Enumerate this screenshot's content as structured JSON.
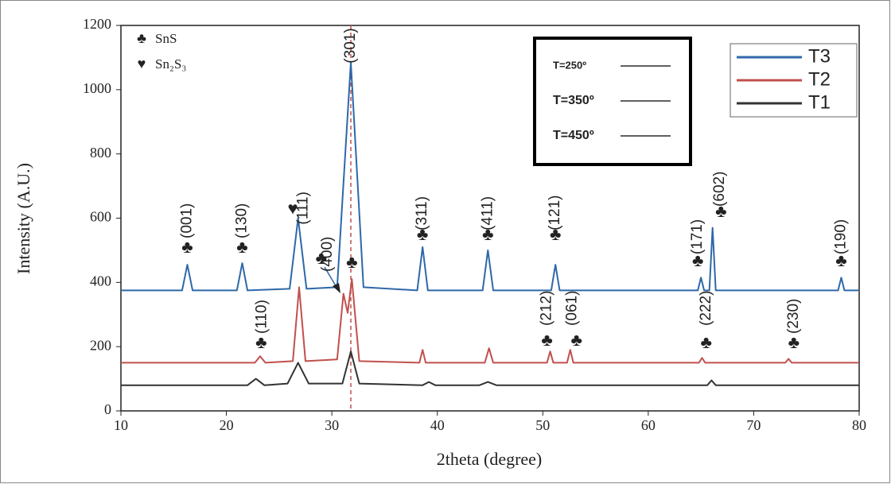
{
  "chart_data": {
    "type": "line",
    "x_label": "2theta (degree)",
    "y_label": "Intensity (A.U.)",
    "xlim": [
      10,
      80
    ],
    "ylim": [
      0,
      1200
    ],
    "xticks": [
      10,
      20,
      30,
      40,
      50,
      60,
      70,
      80
    ],
    "yticks": [
      0,
      200,
      400,
      600,
      800,
      1000,
      1200
    ],
    "grid": false,
    "legend_position": "upper right",
    "series": [
      {
        "name": "T3",
        "color": "#2e68a8",
        "x": [
          10,
          15.8,
          16.3,
          16.8,
          21.0,
          21.5,
          22.0,
          26.0,
          26.8,
          27.6,
          30.5,
          31.8,
          33.0,
          38.1,
          38.6,
          39.1,
          44.3,
          44.8,
          45.3,
          50.8,
          51.2,
          51.6,
          64.7,
          65.0,
          65.3,
          65.8,
          66.1,
          66.4,
          78.0,
          78.3,
          78.6,
          80
        ],
        "values": [
          375,
          375,
          455,
          375,
          375,
          460,
          375,
          380,
          600,
          380,
          385,
          1085,
          385,
          375,
          510,
          375,
          375,
          500,
          375,
          375,
          455,
          375,
          375,
          415,
          375,
          375,
          570,
          375,
          375,
          415,
          375,
          375
        ]
      },
      {
        "name": "T2",
        "color": "#c0504d",
        "x": [
          10,
          22.7,
          23.2,
          23.7,
          26.3,
          26.9,
          27.5,
          30.5,
          31.1,
          31.5,
          31.9,
          32.6,
          38.3,
          38.6,
          38.9,
          44.5,
          44.9,
          45.3,
          50.4,
          50.7,
          51.0,
          52.3,
          52.6,
          52.9,
          64.8,
          65.1,
          65.4,
          73.0,
          73.3,
          73.6,
          80
        ],
        "values": [
          150,
          150,
          170,
          150,
          155,
          385,
          155,
          160,
          365,
          305,
          410,
          155,
          150,
          190,
          150,
          150,
          195,
          150,
          150,
          185,
          150,
          150,
          190,
          150,
          150,
          165,
          150,
          150,
          162,
          150,
          150
        ]
      },
      {
        "name": "T1",
        "color": "#333333",
        "x": [
          10,
          22.0,
          22.8,
          23.6,
          25.8,
          26.8,
          27.8,
          31.0,
          31.8,
          32.6,
          38.6,
          39.2,
          39.8,
          44.0,
          44.8,
          45.6,
          65.6,
          66.0,
          66.4,
          80
        ],
        "values": [
          80,
          80,
          100,
          80,
          85,
          150,
          85,
          85,
          185,
          85,
          80,
          90,
          80,
          80,
          90,
          80,
          80,
          95,
          80,
          80
        ]
      }
    ],
    "reference_line": {
      "x": 31.8,
      "color": "#c0504d"
    },
    "phase_legend": [
      {
        "symbol": "♣",
        "label": "SnS"
      },
      {
        "symbol": "♥",
        "label": "Sn₂S₃"
      }
    ],
    "temperature_legend": [
      {
        "label": "T=250º",
        "color": "#222222"
      },
      {
        "label": "T=350º",
        "color": "#ff0000"
      },
      {
        "label": "T=450º",
        "color": "#4f81bd"
      }
    ],
    "peak_labels": [
      {
        "text": "(001)",
        "x": 16.3,
        "y": 537
      },
      {
        "text": "(130)",
        "x": 21.5,
        "y": 537
      },
      {
        "text": "(111)",
        "x": 27.3,
        "y": 580
      },
      {
        "text": "(400)",
        "x": 29.6,
        "y": 433
      },
      {
        "text": "(301)",
        "x": 31.8,
        "y": 1082
      },
      {
        "text": "(311)",
        "x": 38.6,
        "y": 562
      },
      {
        "text": "(411)",
        "x": 44.8,
        "y": 562
      },
      {
        "text": "(121)",
        "x": 51.2,
        "y": 562
      },
      {
        "text": "(171)",
        "x": 64.7,
        "y": 487
      },
      {
        "text": "(602)",
        "x": 66.8,
        "y": 636
      },
      {
        "text": "(190)",
        "x": 78.3,
        "y": 487
      },
      {
        "text": "(110)",
        "x": 23.4,
        "y": 240
      },
      {
        "text": "(212)",
        "x": 50.4,
        "y": 265
      },
      {
        "text": "(061)",
        "x": 52.8,
        "y": 265
      },
      {
        "text": "(222)",
        "x": 65.5,
        "y": 265
      },
      {
        "text": "(230)",
        "x": 73.8,
        "y": 240
      }
    ],
    "peak_symbols": [
      {
        "symbol": "♣",
        "x": 16.3,
        "y": 505
      },
      {
        "symbol": "♣",
        "x": 21.5,
        "y": 505
      },
      {
        "symbol": "♥",
        "x": 26.3,
        "y": 625
      },
      {
        "symbol": "♣",
        "x": 29.0,
        "y": 470
      },
      {
        "symbol": "♣",
        "x": 31.9,
        "y": 458
      },
      {
        "symbol": "♣",
        "x": 38.6,
        "y": 545
      },
      {
        "symbol": "♣",
        "x": 44.8,
        "y": 545
      },
      {
        "symbol": "♣",
        "x": 51.2,
        "y": 545
      },
      {
        "symbol": "♣",
        "x": 64.7,
        "y": 463
      },
      {
        "symbol": "♣",
        "x": 66.9,
        "y": 616
      },
      {
        "symbol": "♣",
        "x": 78.3,
        "y": 463
      },
      {
        "symbol": "♣",
        "x": 23.3,
        "y": 208
      },
      {
        "symbol": "♣",
        "x": 50.4,
        "y": 215
      },
      {
        "symbol": "♣",
        "x": 53.2,
        "y": 215
      },
      {
        "symbol": "♣",
        "x": 65.5,
        "y": 208
      },
      {
        "symbol": "♣",
        "x": 73.8,
        "y": 208
      }
    ]
  }
}
